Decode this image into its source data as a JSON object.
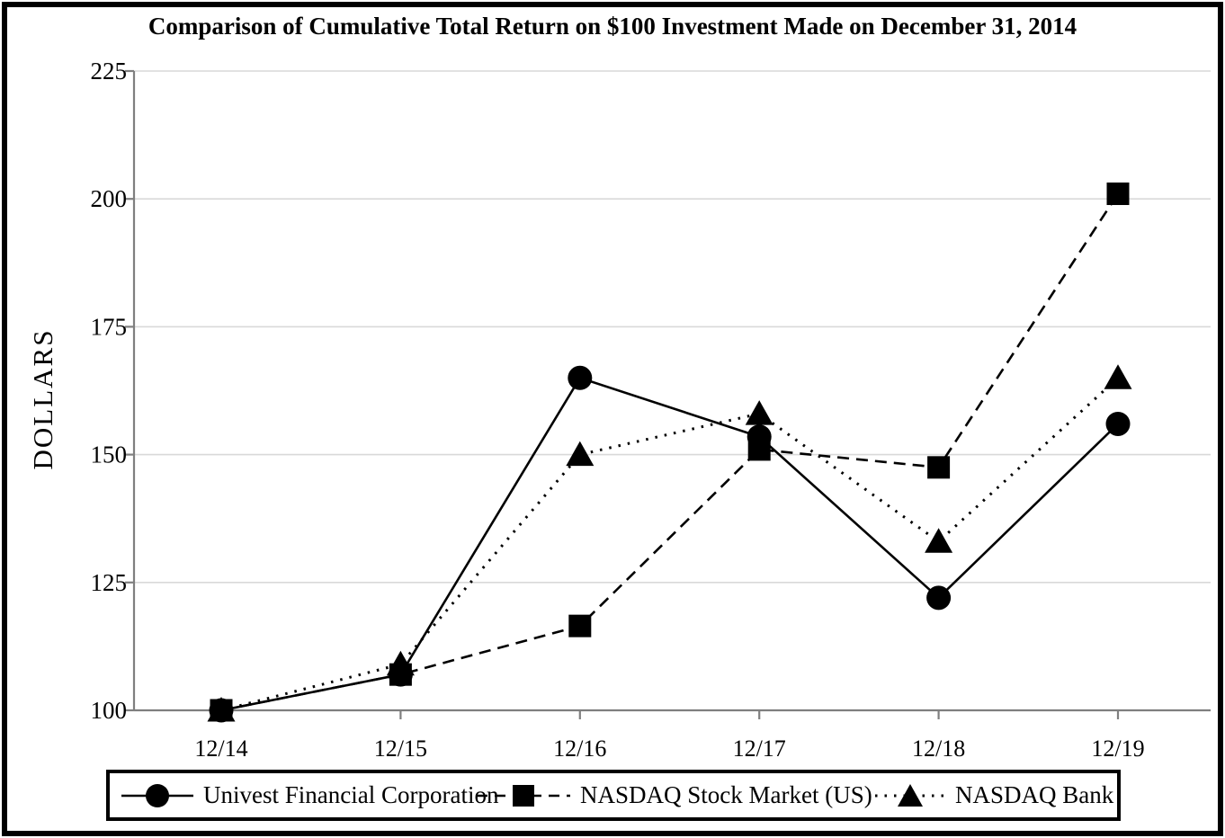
{
  "chart_data": {
    "type": "line",
    "title": "Comparison of Cumulative Total Return on $100 Investment Made on December 31, 2014",
    "xlabel": "",
    "ylabel": "DOLLARS",
    "categories": [
      "12/14",
      "12/15",
      "12/16",
      "12/17",
      "12/18",
      "12/19"
    ],
    "series": [
      {
        "name": "Univest Financial Corporation",
        "marker": "circle",
        "line": "solid",
        "values": [
          100,
          107,
          165,
          153.5,
          122,
          156
        ]
      },
      {
        "name": "NASDAQ Stock Market (US)",
        "marker": "square",
        "line": "dashed",
        "values": [
          100,
          107,
          116.5,
          151,
          147.5,
          201
        ]
      },
      {
        "name": "NASDAQ Bank",
        "marker": "triangle",
        "line": "dotted",
        "values": [
          100,
          109,
          150,
          158,
          133,
          165
        ]
      }
    ],
    "yticks": [
      100,
      125,
      150,
      175,
      200,
      225
    ],
    "ylim": [
      100,
      225
    ],
    "grid": true,
    "legend_position": "bottom",
    "colors": {
      "series": "#000000",
      "axis": "#7f7f7f",
      "grid": "#d9d9d9"
    }
  }
}
